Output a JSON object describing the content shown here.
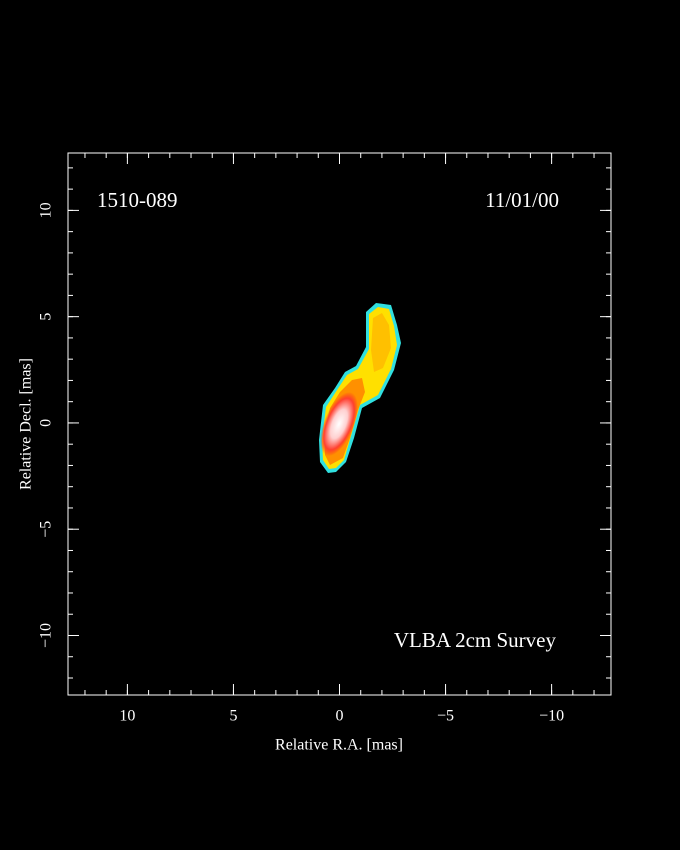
{
  "chart_data": {
    "type": "image",
    "source": "1510-089",
    "date": "11/01/00",
    "survey": "VLBA 2cm Survey",
    "xlabel": "Relative R.A. [mas]",
    "ylabel": "Relative Decl. [mas]",
    "xlim": [
      12.8,
      -12.8
    ],
    "ylim": [
      -12.8,
      12.7
    ],
    "xticks": [
      {
        "value": 10,
        "label": "10"
      },
      {
        "value": 5,
        "label": "5"
      },
      {
        "value": 0,
        "label": "0"
      },
      {
        "value": -5,
        "label": "−5"
      },
      {
        "value": -10,
        "label": "−10"
      }
    ],
    "yticks": [
      {
        "value": -10,
        "label": "−10"
      },
      {
        "value": -5,
        "label": "−5"
      },
      {
        "value": 0,
        "label": "0"
      },
      {
        "value": 5,
        "label": "5"
      },
      {
        "value": 10,
        "label": "10"
      }
    ],
    "xminorticks": [
      -12,
      -11,
      -10,
      -9,
      -8,
      -7,
      -6,
      -5,
      -4,
      -3,
      -2,
      -1,
      0,
      1,
      2,
      3,
      4,
      5,
      6,
      7,
      8,
      9,
      10,
      11,
      12
    ],
    "yminorticks": [
      -12,
      -11,
      -10,
      -9,
      -8,
      -7,
      -6,
      -5,
      -4,
      -3,
      -2,
      -1,
      0,
      1,
      2,
      3,
      4,
      5,
      6,
      7,
      8,
      9,
      10,
      11,
      12
    ]
  }
}
